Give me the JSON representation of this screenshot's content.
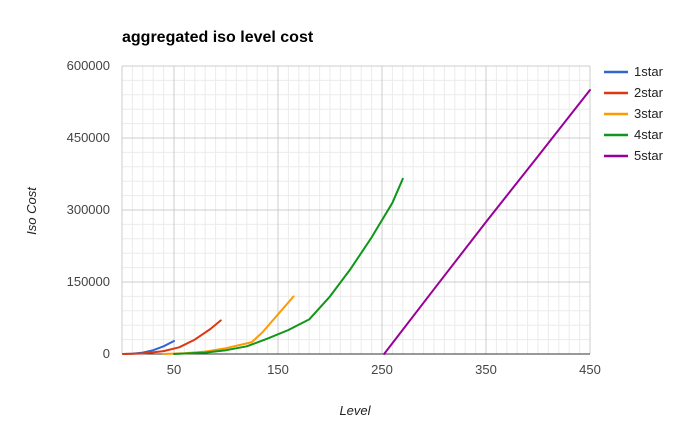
{
  "chart_data": {
    "type": "line",
    "title": "aggregated iso level cost",
    "xlabel": "Level",
    "ylabel": "Iso Cost",
    "xlim": [
      0,
      450
    ],
    "ylim": [
      0,
      600000
    ],
    "x_ticks": [
      50,
      150,
      250,
      350,
      450
    ],
    "y_ticks": [
      0,
      150000,
      300000,
      450000,
      600000
    ],
    "x_tick_labels": [
      "50",
      "150",
      "250",
      "350",
      "450"
    ],
    "y_tick_labels": [
      "0",
      "150000",
      "300000",
      "450000",
      "600000"
    ],
    "grid": true,
    "legend_position": "right",
    "series": [
      {
        "name": "1star",
        "color": "#3366cc",
        "points": [
          [
            1,
            0
          ],
          [
            10,
            500
          ],
          [
            20,
            3000
          ],
          [
            30,
            8000
          ],
          [
            40,
            16000
          ],
          [
            50,
            27000
          ]
        ]
      },
      {
        "name": "2star",
        "color": "#dc3912",
        "points": [
          [
            1,
            0
          ],
          [
            20,
            1000
          ],
          [
            40,
            6000
          ],
          [
            55,
            14000
          ],
          [
            70,
            30000
          ],
          [
            85,
            52000
          ],
          [
            95,
            70000
          ]
        ]
      },
      {
        "name": "3star",
        "color": "#ff9900",
        "points": [
          [
            40,
            0
          ],
          [
            60,
            1500
          ],
          [
            80,
            5000
          ],
          [
            100,
            12000
          ],
          [
            120,
            22000
          ],
          [
            125,
            25000
          ],
          [
            135,
            45000
          ],
          [
            145,
            70000
          ],
          [
            155,
            95000
          ],
          [
            165,
            120000
          ]
        ]
      },
      {
        "name": "4star",
        "color": "#109618",
        "points": [
          [
            50,
            0
          ],
          [
            80,
            3000
          ],
          [
            100,
            8000
          ],
          [
            120,
            16000
          ],
          [
            140,
            32000
          ],
          [
            160,
            50000
          ],
          [
            180,
            72000
          ],
          [
            200,
            120000
          ],
          [
            220,
            178000
          ],
          [
            240,
            243000
          ],
          [
            260,
            315000
          ],
          [
            270,
            365000
          ]
        ]
      },
      {
        "name": "5star",
        "color": "#990099",
        "points": [
          [
            252,
            0
          ],
          [
            300,
            135000
          ],
          [
            350,
            275000
          ],
          [
            400,
            412000
          ],
          [
            450,
            550000
          ]
        ]
      }
    ]
  }
}
